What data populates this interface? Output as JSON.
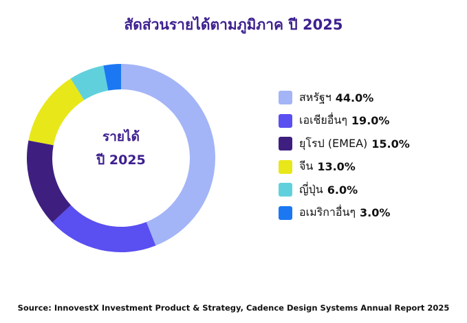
{
  "chart_data": {
    "type": "pie",
    "title": "สัดส่วนรายได้ตามภูมิภาค ปี 2025",
    "center_label": [
      "รายได้",
      "ปี 2025"
    ],
    "legend_position": "right",
    "slices": [
      {
        "label": "สหรัฐฯ",
        "value": 44.0,
        "display": "44.0%",
        "color": "#a3b5f7"
      },
      {
        "label": "เอเชียอื่นๆ",
        "value": 19.0,
        "display": "19.0%",
        "color": "#5a4ff0"
      },
      {
        "label": "ยุโรป (EMEA)",
        "value": 15.0,
        "display": "15.0%",
        "color": "#3e1f80"
      },
      {
        "label": "จีน",
        "value": 13.0,
        "display": "13.0%",
        "color": "#e8e71a"
      },
      {
        "label": "ญี่ปุ่น",
        "value": 6.0,
        "display": "6.0%",
        "color": "#60d1dc"
      },
      {
        "label": "อเมริกาอื่นๆ",
        "value": 3.0,
        "display": "3.0%",
        "color": "#1b78f2"
      }
    ]
  },
  "source": "Source: InnovestX Investment Product & Strategy, Cadence Design Systems Annual Report 2025"
}
